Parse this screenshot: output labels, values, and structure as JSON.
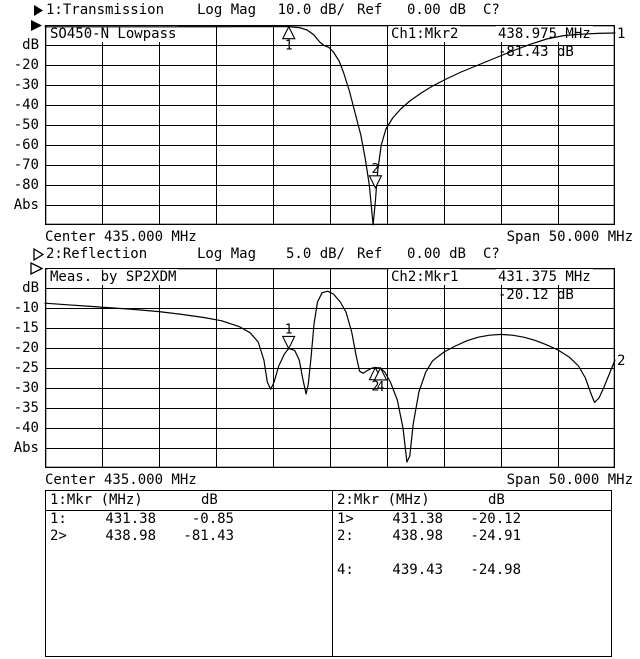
{
  "screen": {
    "background": "#ffffff",
    "foreground": "#000000"
  },
  "ch1": {
    "menu": {
      "channel": "1:Transmission",
      "format": "Log Mag",
      "scale": "10.0 dB/",
      "ref_label": "Ref",
      "ref_value": "0.00 dB",
      "cal_status": "C?"
    },
    "title": "SO450-N Lowpass",
    "marker_readout": {
      "label": "Ch1:Mkr2",
      "freq": "438.975 MHz",
      "value": "-81.43 dB"
    },
    "y_labels": [
      "dB",
      "-20",
      "-30",
      "-40",
      "-50",
      "-60",
      "-70",
      "-80",
      "Abs"
    ],
    "footer": {
      "center": "Center 435.000 MHz",
      "span": "Span 50.000 MHz"
    },
    "trace_number": "1"
  },
  "ch2": {
    "menu": {
      "channel": "2:Reflection",
      "format": "Log Mag",
      "scale": "5.0 dB/",
      "ref_label": "Ref",
      "ref_value": "0.00 dB",
      "cal_status": "C?"
    },
    "title": "Meas. by SP2XDM",
    "marker_readout": {
      "label": "Ch2:Mkr1",
      "freq": "431.375 MHz",
      "value": "-20.12 dB"
    },
    "y_labels": [
      "dB",
      "-10",
      "-15",
      "-20",
      "-25",
      "-30",
      "-35",
      "-40",
      "Abs"
    ],
    "footer": {
      "center": "Center 435.000 MHz",
      "span": "Span 50.000 MHz"
    },
    "trace_number": "2"
  },
  "marker_table": {
    "ch1": {
      "title": "1:Mkr (MHz)",
      "unit": "dB",
      "rows": [
        [
          "1:",
          "431.38",
          "-0.85"
        ],
        [
          "2>",
          "438.98",
          "-81.43"
        ]
      ]
    },
    "ch2": {
      "title": "2:Mkr (MHz)",
      "unit": "dB",
      "rows": [
        [
          "1>",
          "431.38",
          "-20.12"
        ],
        [
          "2:",
          "438.98",
          "-24.91"
        ],
        [
          "",
          "",
          ""
        ],
        [
          "4:",
          "439.43",
          "-24.98"
        ]
      ]
    }
  },
  "icons": {
    "ch1_channel_arrow": "filled-right-triangle",
    "ch2_channel_arrow": "hollow-right-triangle",
    "ch1_ref_level_arrow": "filled-right-triangle",
    "ch2_ref_level_arrow": "hollow-right-triangle"
  },
  "chart_data": [
    {
      "id": "ch1",
      "type": "line",
      "title": "Transmission, Log Mag 10.0 dB/div, Ref 0.00 dB",
      "xlabel": "Frequency (MHz), Center 435.000 MHz, Span 50.000 MHz",
      "ylabel": "dB",
      "xlim": [
        410,
        460
      ],
      "ylim": [
        -100,
        0
      ],
      "grid": {
        "cols": 10,
        "rows": 10
      },
      "x": [
        410,
        413,
        416,
        419,
        422,
        425,
        427,
        429,
        431.38,
        432.3,
        433.0,
        433.6,
        434.1,
        434.5,
        434.9,
        435.3,
        435.8,
        436.2,
        436.7,
        437.2,
        437.7,
        438.1,
        438.45,
        438.65,
        438.78,
        438.98,
        439.2,
        439.5,
        439.9,
        440.5,
        441.2,
        442,
        443,
        444,
        445.2,
        446.5,
        448,
        449.5,
        451,
        452.5,
        454,
        455.5,
        457,
        458.5,
        460
      ],
      "y": [
        -0.9,
        -0.9,
        -0.9,
        -0.9,
        -0.9,
        -0.9,
        -0.85,
        -0.85,
        -0.85,
        -1.3,
        -2.5,
        -5,
        -8.5,
        -10.3,
        -11.2,
        -13.5,
        -18,
        -24,
        -33,
        -44,
        -55,
        -67,
        -80,
        -92,
        -100,
        -88,
        -72,
        -60,
        -52,
        -46.5,
        -42,
        -38,
        -34,
        -30.5,
        -27,
        -23.5,
        -20,
        -16.5,
        -13,
        -9.8,
        -7,
        -5.3,
        -4.6,
        -4.2,
        -4.0
      ],
      "markers": [
        {
          "label": "1",
          "x": 431.38,
          "y": -0.85,
          "dir": "up",
          "text_pos": "below"
        },
        {
          "label": "2",
          "x": 438.98,
          "y": -81.43,
          "dir": "down",
          "text_pos": "above"
        }
      ]
    },
    {
      "id": "ch2",
      "type": "line",
      "title": "Reflection, Log Mag 5.0 dB/div, Ref 0.00 dB",
      "xlabel": "Frequency (MHz), Center 435.000 MHz, Span 50.000 MHz",
      "ylabel": "dB",
      "xlim": [
        410,
        460
      ],
      "ylim": [
        -50,
        0
      ],
      "grid": {
        "cols": 10,
        "rows": 10
      },
      "x": [
        410,
        412,
        414,
        416,
        418,
        420,
        422,
        424,
        425.5,
        427,
        428,
        428.7,
        429.2,
        429.5,
        429.8,
        430.1,
        430.5,
        431,
        431.38,
        431.9,
        432.3,
        432.6,
        432.9,
        433.1,
        433.35,
        433.6,
        433.9,
        434.3,
        434.8,
        435.3,
        435.9,
        436.4,
        436.9,
        437.3,
        437.6,
        437.9,
        438.3,
        438.7,
        438.98,
        439.43,
        439.8,
        440.3,
        440.9,
        441.4,
        441.75,
        442.0,
        442.3,
        442.8,
        443.4,
        444,
        445,
        446,
        447,
        448,
        449,
        450,
        451,
        452,
        453,
        454,
        455,
        456,
        456.8,
        457.4,
        457.9,
        458.2,
        458.6,
        459,
        459.5,
        460
      ],
      "y": [
        -8.8,
        -9.2,
        -9.6,
        -10,
        -10.4,
        -10.9,
        -11.6,
        -12.4,
        -13.2,
        -14.6,
        -16.2,
        -18.5,
        -23,
        -28.5,
        -30.3,
        -28.5,
        -24.5,
        -21.5,
        -20.1,
        -20.6,
        -23,
        -27.5,
        -31.5,
        -29,
        -22,
        -14,
        -8.5,
        -6.2,
        -5.8,
        -6.5,
        -8.5,
        -11,
        -16,
        -22,
        -25.8,
        -26.3,
        -25.6,
        -25,
        -24.9,
        -25,
        -26,
        -28.5,
        -33,
        -40,
        -48.5,
        -47,
        -39,
        -31,
        -26,
        -23.2,
        -21,
        -19.5,
        -18.2,
        -17.3,
        -16.8,
        -16.6,
        -16.8,
        -17.3,
        -18.1,
        -19.2,
        -20.5,
        -22.3,
        -24.5,
        -27.5,
        -31.5,
        -33.6,
        -32.5,
        -30,
        -26.5,
        -23
      ],
      "markers": [
        {
          "label": "1",
          "x": 431.375,
          "y": -20.12,
          "dir": "down",
          "text_pos": "above"
        },
        {
          "label": "2",
          "x": 438.98,
          "y": -24.91,
          "dir": "up",
          "text_pos": "below"
        },
        {
          "label": "4",
          "x": 439.43,
          "y": -24.98,
          "dir": "up",
          "text_pos": "below"
        }
      ]
    }
  ]
}
